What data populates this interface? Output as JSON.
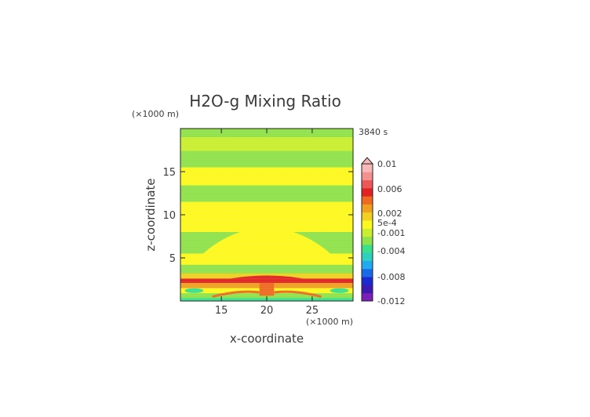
{
  "chart_data": {
    "type": "heatmap",
    "title": "H2O-g Mixing Ratio",
    "time_label": "3840 s",
    "xlabel": "x-coordinate",
    "ylabel": "z-coordinate",
    "x_unit": "(×1000 m)",
    "y_unit": "(×1000 m)",
    "xlim": [
      10.5,
      29.5
    ],
    "ylim": [
      0,
      20
    ],
    "x_ticks": [
      "15",
      "20",
      "25"
    ],
    "x_tick_values": [
      15,
      20,
      25
    ],
    "y_ticks": [
      "5",
      "10",
      "15"
    ],
    "y_tick_values": [
      5,
      10,
      15
    ],
    "colorbar_labels": [
      "0.01",
      "0.006",
      "0.002",
      "5e-4",
      "-0.001",
      "-0.004",
      "-0.008",
      "-0.012"
    ],
    "colorbar_values": [
      0.01,
      0.006,
      0.002,
      0.0005,
      -0.001,
      -0.004,
      -0.008,
      -0.012
    ],
    "colorbar_colors": [
      "#7a1fb8",
      "#3a1ab0",
      "#1a2ad0",
      "#1a6ae8",
      "#22aaf0",
      "#2fd0c0",
      "#3ae08a",
      "#8fe24a",
      "#c9ee30",
      "#fcf81e",
      "#f0d020",
      "#f0a020",
      "#ee6a20",
      "#e02222",
      "#ec5858",
      "#f49090",
      "#f8b8b8"
    ],
    "bands": [
      {
        "z": [
          19.0,
          20.0
        ],
        "value": -0.0007
      },
      {
        "z": [
          17.4,
          19.0
        ],
        "value": -0.0004
      },
      {
        "z": [
          15.5,
          17.4
        ],
        "value": -0.0007
      },
      {
        "z": [
          13.4,
          15.5
        ],
        "value": 0.0002
      },
      {
        "z": [
          11.5,
          13.4
        ],
        "value": -0.0007
      },
      {
        "z": [
          8.0,
          11.5
        ],
        "value": 0.0003
      },
      {
        "z": [
          5.5,
          8.0
        ],
        "value": -0.0006
      },
      {
        "z": [
          4.2,
          5.5
        ],
        "value": 0.0002
      },
      {
        "z": [
          3.2,
          4.2
        ],
        "value": -0.0008
      },
      {
        "z": [
          2.6,
          3.2
        ],
        "value": 0.0012
      },
      {
        "z": [
          2.1,
          2.6
        ],
        "value": 0.005
      },
      {
        "z": [
          1.5,
          2.1
        ],
        "value": 0.0015
      },
      {
        "z": [
          0.9,
          1.5
        ],
        "value": 0.0003
      },
      {
        "z": [
          0.35,
          0.9
        ],
        "value": -0.001
      },
      {
        "z": [
          0.0,
          0.35
        ],
        "value": -0.0025
      }
    ]
  }
}
